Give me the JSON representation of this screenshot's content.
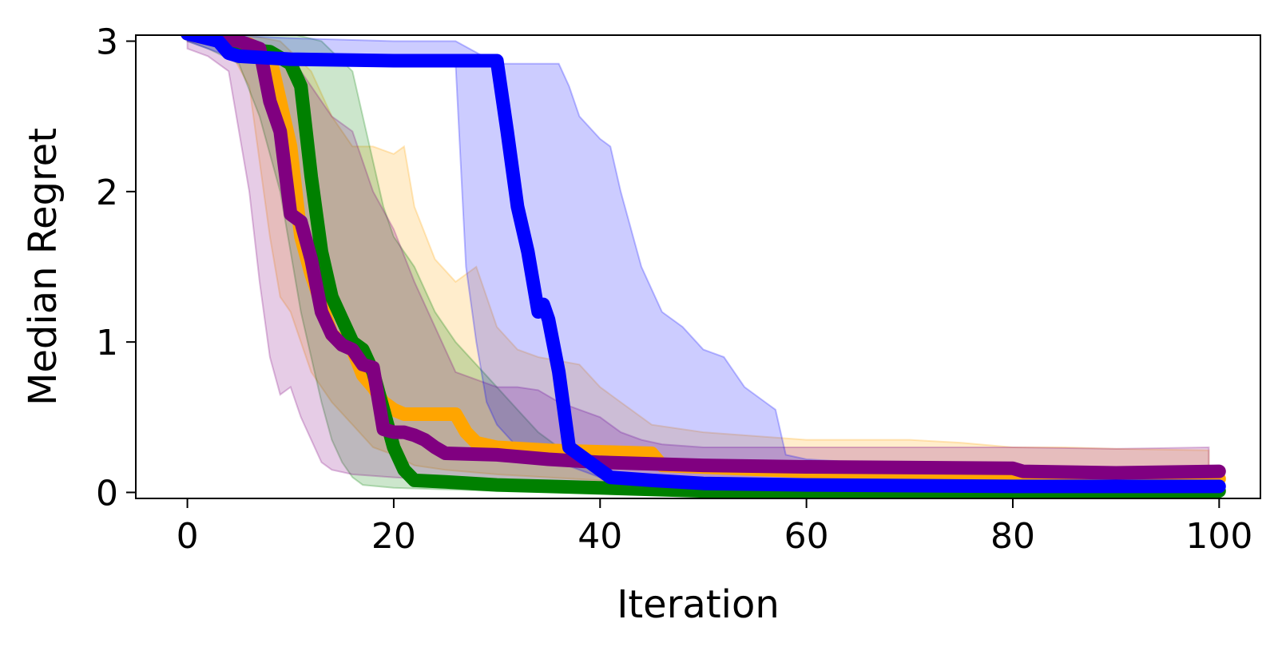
{
  "chart_data": {
    "type": "line",
    "title": "",
    "xlabel": "Iteration",
    "ylabel": "Median Regret",
    "xlim": [
      -5,
      104
    ],
    "ylim": [
      -0.04,
      3.04
    ],
    "xticks": [
      0,
      20,
      40,
      60,
      80,
      100
    ],
    "yticks": [
      0,
      1,
      2,
      3
    ],
    "x_tick_labels": [
      "0",
      "20",
      "40",
      "60",
      "80",
      "100"
    ],
    "y_tick_labels": [
      "0",
      "1",
      "2",
      "3"
    ],
    "grid": false,
    "legend": "none",
    "series": [
      {
        "color": "#ffa500",
        "median": [
          [
            0,
            3.05
          ],
          [
            4,
            3.0
          ],
          [
            6,
            2.98
          ],
          [
            8,
            2.9
          ],
          [
            10,
            2.3
          ],
          [
            11,
            1.7
          ],
          [
            12,
            1.45
          ],
          [
            13,
            1.25
          ],
          [
            14,
            1.05
          ],
          [
            16,
            0.95
          ],
          [
            17,
            0.78
          ],
          [
            18,
            0.7
          ],
          [
            19,
            0.6
          ],
          [
            20,
            0.55
          ],
          [
            21,
            0.52
          ],
          [
            26,
            0.52
          ],
          [
            27,
            0.4
          ],
          [
            28,
            0.33
          ],
          [
            30,
            0.3
          ],
          [
            35,
            0.28
          ],
          [
            40,
            0.27
          ],
          [
            45,
            0.26
          ],
          [
            46,
            0.18
          ],
          [
            60,
            0.14
          ],
          [
            80,
            0.1
          ],
          [
            100,
            0.09
          ]
        ],
        "band_upper": [
          [
            0,
            3.05
          ],
          [
            5,
            3.05
          ],
          [
            9,
            3.0
          ],
          [
            12,
            2.8
          ],
          [
            14,
            2.5
          ],
          [
            16,
            2.3
          ],
          [
            18,
            2.3
          ],
          [
            20,
            2.25
          ],
          [
            21,
            2.3
          ],
          [
            22,
            1.9
          ],
          [
            24,
            1.55
          ],
          [
            26,
            1.4
          ],
          [
            28,
            1.5
          ],
          [
            30,
            1.1
          ],
          [
            32,
            0.95
          ],
          [
            34,
            0.9
          ],
          [
            38,
            0.85
          ],
          [
            40,
            0.7
          ],
          [
            42,
            0.6
          ],
          [
            45,
            0.45
          ],
          [
            50,
            0.4
          ],
          [
            60,
            0.35
          ],
          [
            70,
            0.35
          ],
          [
            75,
            0.33
          ],
          [
            80,
            0.3
          ],
          [
            85,
            0.3
          ],
          [
            90,
            0.29
          ],
          [
            99,
            0.28
          ]
        ],
        "band_lower": [
          [
            0,
            3.0
          ],
          [
            4,
            2.95
          ],
          [
            6,
            2.7
          ],
          [
            7,
            2.2
          ],
          [
            8,
            1.7
          ],
          [
            9,
            1.3
          ],
          [
            10,
            1.2
          ],
          [
            11,
            1.0
          ],
          [
            12,
            0.8
          ],
          [
            14,
            0.6
          ],
          [
            16,
            0.45
          ],
          [
            18,
            0.3
          ],
          [
            20,
            0.25
          ],
          [
            22,
            0.18
          ],
          [
            25,
            0.15
          ],
          [
            30,
            0.12
          ],
          [
            35,
            0.1
          ],
          [
            40,
            0.08
          ],
          [
            50,
            0.05
          ],
          [
            60,
            0.05
          ],
          [
            80,
            0.05
          ],
          [
            99,
            0.05
          ]
        ]
      },
      {
        "color": "#008000",
        "median": [
          [
            0,
            3.05
          ],
          [
            3,
            3.02
          ],
          [
            5,
            2.95
          ],
          [
            8,
            2.93
          ],
          [
            10,
            2.85
          ],
          [
            11,
            2.7
          ],
          [
            12,
            2.1
          ],
          [
            13,
            1.6
          ],
          [
            14,
            1.3
          ],
          [
            15,
            1.15
          ],
          [
            16,
            1.0
          ],
          [
            17,
            0.95
          ],
          [
            18,
            0.8
          ],
          [
            19,
            0.55
          ],
          [
            20,
            0.3
          ],
          [
            21,
            0.15
          ],
          [
            22,
            0.08
          ],
          [
            25,
            0.07
          ],
          [
            30,
            0.05
          ],
          [
            35,
            0.04
          ],
          [
            40,
            0.03
          ],
          [
            45,
            0.02
          ],
          [
            50,
            0.01
          ],
          [
            60,
            0.01
          ],
          [
            80,
            0.01
          ],
          [
            100,
            0.01
          ]
        ],
        "band_upper": [
          [
            0,
            3.05
          ],
          [
            6,
            3.05
          ],
          [
            10,
            3.05
          ],
          [
            13,
            3.0
          ],
          [
            16,
            2.8
          ],
          [
            17,
            2.5
          ],
          [
            18,
            2.2
          ],
          [
            19,
            1.9
          ],
          [
            20,
            1.7
          ],
          [
            22,
            1.5
          ],
          [
            24,
            1.2
          ],
          [
            26,
            1.0
          ],
          [
            28,
            0.85
          ],
          [
            30,
            0.7
          ],
          [
            32,
            0.55
          ],
          [
            34,
            0.4
          ],
          [
            36,
            0.3
          ],
          [
            40,
            0.15
          ],
          [
            45,
            0.08
          ],
          [
            50,
            0.06
          ],
          [
            60,
            0.05
          ],
          [
            80,
            0.05
          ],
          [
            100,
            0.05
          ]
        ],
        "band_lower": [
          [
            0,
            3.0
          ],
          [
            2,
            2.95
          ],
          [
            5,
            2.85
          ],
          [
            7,
            2.5
          ],
          [
            9,
            2.0
          ],
          [
            10,
            1.6
          ],
          [
            11,
            1.2
          ],
          [
            12,
            0.9
          ],
          [
            13,
            0.6
          ],
          [
            14,
            0.35
          ],
          [
            15,
            0.2
          ],
          [
            16,
            0.1
          ],
          [
            17,
            0.05
          ],
          [
            20,
            0.03
          ],
          [
            25,
            0.02
          ],
          [
            30,
            0.01
          ],
          [
            50,
            0.0
          ],
          [
            100,
            0.0
          ]
        ]
      },
      {
        "color": "#800080",
        "median": [
          [
            0,
            3.05
          ],
          [
            5,
            3.0
          ],
          [
            7,
            2.95
          ],
          [
            8,
            2.6
          ],
          [
            9,
            2.4
          ],
          [
            10,
            1.85
          ],
          [
            11,
            1.8
          ],
          [
            12,
            1.55
          ],
          [
            13,
            1.2
          ],
          [
            14,
            1.05
          ],
          [
            15,
            0.98
          ],
          [
            16,
            0.95
          ],
          [
            17,
            0.85
          ],
          [
            18,
            0.83
          ],
          [
            19,
            0.42
          ],
          [
            20,
            0.4
          ],
          [
            21,
            0.4
          ],
          [
            22,
            0.38
          ],
          [
            23,
            0.35
          ],
          [
            24,
            0.3
          ],
          [
            25,
            0.26
          ],
          [
            30,
            0.25
          ],
          [
            35,
            0.22
          ],
          [
            40,
            0.2
          ],
          [
            50,
            0.18
          ],
          [
            60,
            0.17
          ],
          [
            80,
            0.16
          ],
          [
            81,
            0.14
          ],
          [
            90,
            0.13
          ],
          [
            100,
            0.14
          ]
        ],
        "band_upper": [
          [
            0,
            3.05
          ],
          [
            6,
            3.02
          ],
          [
            10,
            2.9
          ],
          [
            12,
            2.7
          ],
          [
            14,
            2.5
          ],
          [
            16,
            2.4
          ],
          [
            18,
            2.0
          ],
          [
            20,
            1.75
          ],
          [
            22,
            1.4
          ],
          [
            24,
            1.1
          ],
          [
            26,
            0.8
          ],
          [
            28,
            0.75
          ],
          [
            30,
            0.7
          ],
          [
            32,
            0.7
          ],
          [
            34,
            0.68
          ],
          [
            36,
            0.6
          ],
          [
            38,
            0.55
          ],
          [
            40,
            0.5
          ],
          [
            42,
            0.4
          ],
          [
            44,
            0.35
          ],
          [
            46,
            0.32
          ],
          [
            50,
            0.3
          ],
          [
            55,
            0.3
          ],
          [
            60,
            0.3
          ],
          [
            70,
            0.3
          ],
          [
            80,
            0.3
          ],
          [
            90,
            0.29
          ],
          [
            99,
            0.3
          ]
        ],
        "band_lower": [
          [
            0,
            2.95
          ],
          [
            2,
            2.9
          ],
          [
            4,
            2.8
          ],
          [
            6,
            2.0
          ],
          [
            7,
            1.4
          ],
          [
            8,
            0.9
          ],
          [
            9,
            0.65
          ],
          [
            10,
            0.7
          ],
          [
            11,
            0.5
          ],
          [
            12,
            0.35
          ],
          [
            13,
            0.2
          ],
          [
            14,
            0.15
          ],
          [
            16,
            0.12
          ],
          [
            20,
            0.1
          ],
          [
            25,
            0.08
          ],
          [
            30,
            0.05
          ],
          [
            40,
            0.03
          ],
          [
            60,
            0.02
          ],
          [
            80,
            0.02
          ],
          [
            99,
            0.02
          ]
        ]
      },
      {
        "color": "#0000ff",
        "median": [
          [
            0,
            3.05
          ],
          [
            3,
            3.0
          ],
          [
            4,
            2.92
          ],
          [
            5,
            2.9
          ],
          [
            10,
            2.88
          ],
          [
            20,
            2.87
          ],
          [
            30,
            2.87
          ],
          [
            31,
            2.4
          ],
          [
            32,
            1.9
          ],
          [
            33,
            1.6
          ],
          [
            34,
            1.2
          ],
          [
            34.5,
            1.25
          ],
          [
            35,
            1.15
          ],
          [
            36,
            0.8
          ],
          [
            37,
            0.3
          ],
          [
            38,
            0.25
          ],
          [
            40,
            0.15
          ],
          [
            41,
            0.1
          ],
          [
            45,
            0.08
          ],
          [
            50,
            0.06
          ],
          [
            60,
            0.05
          ],
          [
            80,
            0.04
          ],
          [
            100,
            0.04
          ]
        ],
        "band_upper": [
          [
            0,
            3.05
          ],
          [
            10,
            3.02
          ],
          [
            20,
            3.0
          ],
          [
            26,
            3.0
          ],
          [
            30,
            2.85
          ],
          [
            36,
            2.85
          ],
          [
            37,
            2.7
          ],
          [
            38,
            2.5
          ],
          [
            40,
            2.35
          ],
          [
            41,
            2.3
          ],
          [
            42,
            2.0
          ],
          [
            44,
            1.5
          ],
          [
            46,
            1.2
          ],
          [
            48,
            1.1
          ],
          [
            50,
            0.95
          ],
          [
            52,
            0.9
          ],
          [
            54,
            0.7
          ],
          [
            56,
            0.6
          ],
          [
            57,
            0.55
          ],
          [
            58,
            0.25
          ],
          [
            60,
            0.22
          ],
          [
            70,
            0.18
          ],
          [
            80,
            0.15
          ],
          [
            100,
            0.12
          ]
        ],
        "band_lower": [
          [
            0,
            3.0
          ],
          [
            2,
            2.95
          ],
          [
            4,
            2.9
          ],
          [
            26,
            2.85
          ],
          [
            27,
            1.5
          ],
          [
            28,
            1.0
          ],
          [
            29,
            0.6
          ],
          [
            30,
            0.45
          ],
          [
            32,
            0.3
          ],
          [
            34,
            0.25
          ],
          [
            36,
            0.2
          ],
          [
            38,
            0.15
          ],
          [
            40,
            0.1
          ],
          [
            45,
            0.05
          ],
          [
            50,
            0.03
          ],
          [
            60,
            0.02
          ],
          [
            100,
            0.01
          ]
        ]
      }
    ]
  }
}
